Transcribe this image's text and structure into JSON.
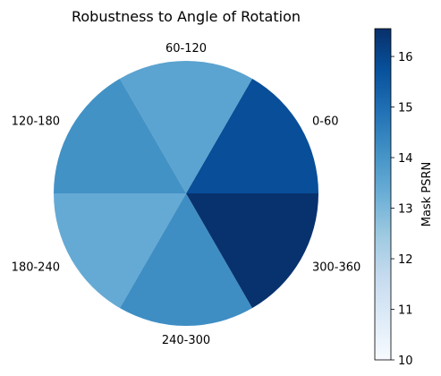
{
  "chart_data": {
    "type": "pie",
    "title": "Robustness to Angle of Rotation",
    "categories": [
      "0-60",
      "60-120",
      "120-180",
      "180-240",
      "240-300",
      "300-360"
    ],
    "values": [
      1,
      1,
      1,
      1,
      1,
      1
    ],
    "color_values": [
      15.8,
      13.6,
      14.1,
      13.4,
      14.2,
      16.5
    ],
    "colorbar": {
      "label": "Mask PSRN",
      "range": [
        10,
        16.55
      ],
      "ticks": [
        10,
        11,
        12,
        13,
        14,
        15,
        16
      ],
      "colormap": "Blues"
    }
  }
}
